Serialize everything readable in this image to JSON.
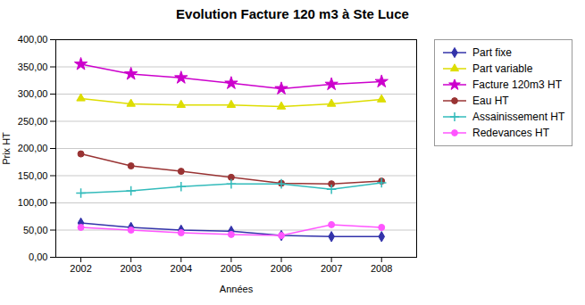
{
  "chart_data": {
    "type": "line",
    "title": "Evolution Facture 120 m3 à Ste Luce",
    "xlabel": "Années",
    "ylabel": "Prix HT",
    "x": [
      2002,
      2003,
      2004,
      2005,
      2006,
      2007,
      2008
    ],
    "series": [
      {
        "name": "Part fixe",
        "color": "#3333AA",
        "marker": "diamond",
        "values": [
          63,
          55,
          50,
          48,
          40,
          38,
          38
        ]
      },
      {
        "name": "Part variable",
        "color": "#DDDD00",
        "marker": "triangle",
        "values": [
          292,
          282,
          280,
          280,
          277,
          282,
          290
        ]
      },
      {
        "name": "Facture 120m3 HT",
        "color": "#CC00CC",
        "marker": "star",
        "values": [
          355,
          337,
          330,
          320,
          310,
          318,
          323
        ]
      },
      {
        "name": "Eau HT",
        "color": "#993333",
        "marker": "circle",
        "values": [
          190,
          168,
          158,
          147,
          136,
          135,
          140
        ]
      },
      {
        "name": "Assainissement HT",
        "color": "#33BBBB",
        "marker": "plus",
        "values": [
          118,
          122,
          130,
          135,
          135,
          125,
          137
        ]
      },
      {
        "name": "Redevances HT",
        "color": "#FF55FF",
        "marker": "circle",
        "values": [
          55,
          50,
          45,
          42,
          40,
          60,
          55
        ]
      }
    ],
    "xlim": [
      2001.5,
      2008.7
    ],
    "xticks": [
      2002,
      2003,
      2004,
      2005,
      2006,
      2007,
      2008
    ],
    "ylim": [
      0,
      400
    ],
    "yticks": [
      {
        "value": 0,
        "label": "0,00"
      },
      {
        "value": 50,
        "label": "50,00"
      },
      {
        "value": 100,
        "label": "100,00"
      },
      {
        "value": 150,
        "label": "150,00"
      },
      {
        "value": 200,
        "label": "200,00"
      },
      {
        "value": 250,
        "label": "250,00"
      },
      {
        "value": 300,
        "label": "300,00"
      },
      {
        "value": 350,
        "label": "350,00"
      },
      {
        "value": 400,
        "label": "400,00"
      }
    ],
    "grid": true,
    "legend": "right"
  }
}
